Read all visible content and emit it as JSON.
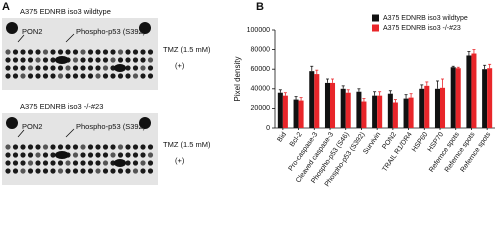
{
  "panel_a": {
    "label": "A",
    "blots": [
      {
        "title": "A375 EDNRB iso3 wildtype",
        "marker_1": "PON2",
        "marker_2": "Phospho-p53 (S392)",
        "treatment": "TMZ (1.5 mM)",
        "sign": "(+)"
      },
      {
        "title": "A375 EDNRB iso3 -/-#23",
        "marker_1": "PON2",
        "marker_2": "Phospho-p53 (S392)",
        "treatment": "TMZ (1.5 mM)",
        "sign": "(+)"
      }
    ]
  },
  "chart_data": {
    "type": "bar",
    "panel_label": "B",
    "y_label": "Pixel density",
    "categories": [
      "Bid",
      "Bcl-2",
      "Pro-caspase-3",
      "Cleaved caspase-3",
      "Phospho-p53 (S46)",
      "Phospho-p53 (S392)",
      "Survivin",
      "PON2",
      "TRAIL R1/DR4",
      "HSP60",
      "HSP70",
      "Refernce spots",
      "Refernce spots",
      "Refernce spots"
    ],
    "series": [
      {
        "name": "A375 EDNRB iso3 wildtype",
        "color": "#111111",
        "values": [
          36000,
          29000,
          58000,
          46000,
          40000,
          37000,
          33000,
          35000,
          30000,
          40000,
          40000,
          62000,
          74000,
          60000
        ],
        "errors": [
          3000,
          3000,
          5000,
          4000,
          3000,
          3000,
          4000,
          3000,
          4000,
          4000,
          8000,
          1000,
          4000,
          4000
        ]
      },
      {
        "name": "A375 EDNRB iso3 -/-#23",
        "color": "#e8262a",
        "values": [
          33000,
          28000,
          55000,
          46000,
          36000,
          27000,
          33000,
          26000,
          31000,
          43000,
          41000,
          61000,
          76000,
          61000
        ],
        "errors": [
          3000,
          3000,
          4000,
          4000,
          3000,
          3000,
          4000,
          3000,
          4000,
          4000,
          9000,
          1000,
          4000,
          4000
        ]
      }
    ],
    "ylim": [
      0,
      100000
    ],
    "yticks": [
      0,
      20000,
      40000,
      60000,
      80000,
      100000
    ],
    "grid": false,
    "legend": "top-right"
  }
}
